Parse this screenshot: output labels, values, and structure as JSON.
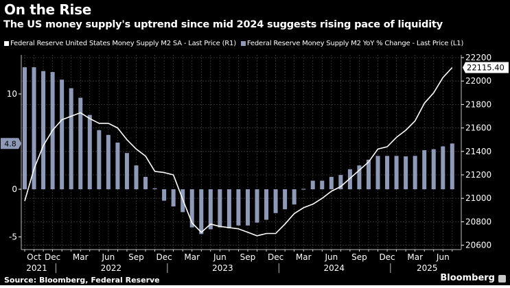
{
  "header": {
    "title": "On the Rise",
    "subtitle": "The US money supply's uptrend since mid 2024 suggests rising pace of liquidity"
  },
  "footer": {
    "source": "Source: Bloomberg, Federal Reserve",
    "brand": "Bloomberg"
  },
  "colors": {
    "background": "#000000",
    "line": "#ffffff",
    "bar": "#8e9ab8",
    "grid": "#3a3a3a",
    "text": "#ffffff"
  },
  "chart_data": {
    "type": "bar+line",
    "title": "On the Rise",
    "subtitle": "The US money supply's uptrend since mid 2024 suggests rising pace of liquidity",
    "legend_position": "top-left",
    "grid": true,
    "months": [
      "Sep 2021",
      "Oct 2021",
      "Nov 2021",
      "Dec 2021",
      "Jan 2022",
      "Feb 2022",
      "Mar 2022",
      "Apr 2022",
      "May 2022",
      "Jun 2022",
      "Jul 2022",
      "Aug 2022",
      "Sep 2022",
      "Oct 2022",
      "Nov 2022",
      "Dec 2022",
      "Jan 2023",
      "Feb 2023",
      "Mar 2023",
      "Apr 2023",
      "May 2023",
      "Jun 2023",
      "Jul 2023",
      "Aug 2023",
      "Sep 2023",
      "Oct 2023",
      "Nov 2023",
      "Dec 2023",
      "Jan 2024",
      "Feb 2024",
      "Mar 2024",
      "Apr 2024",
      "May 2024",
      "Jun 2024",
      "Jul 2024",
      "Aug 2024",
      "Sep 2024",
      "Oct 2024",
      "Nov 2024",
      "Dec 2024",
      "Jan 2025",
      "Feb 2025",
      "Mar 2025",
      "Apr 2025",
      "May 2025",
      "Jun 2025",
      "Jul 2025"
    ],
    "series": [
      {
        "name": "Federal Reserve United States Money Supply M2 SA - Last Price (R1)",
        "kind": "line",
        "axis": "right",
        "color": "#ffffff",
        "values": [
          20977,
          21250,
          21450,
          21580,
          21670,
          21700,
          21730,
          21680,
          21640,
          21640,
          21600,
          21500,
          21420,
          21360,
          21230,
          21220,
          21200,
          20990,
          20790,
          20710,
          20780,
          20760,
          20750,
          20740,
          20710,
          20680,
          20700,
          20700,
          20780,
          20870,
          20920,
          20950,
          21000,
          21060,
          21100,
          21170,
          21240,
          21310,
          21420,
          21440,
          21520,
          21580,
          21660,
          21810,
          21900,
          22030,
          22115.4
        ],
        "last_label": "22115.40"
      },
      {
        "name": "Federal Reserve Money Supply M2 YoY % Change - Last Price (L1)",
        "kind": "bar",
        "axis": "left",
        "color": "#8e9ab8",
        "values": [
          12.8,
          12.8,
          12.4,
          12.3,
          11.5,
          10.6,
          9.6,
          7.8,
          6.2,
          5.7,
          4.9,
          3.8,
          2.5,
          1.3,
          0.1,
          -1.2,
          -1.8,
          -2.4,
          -4.0,
          -4.7,
          -4.2,
          -4.0,
          -4.1,
          -3.8,
          -3.8,
          -3.5,
          -3.2,
          -2.5,
          -2.1,
          -1.6,
          0.05,
          0.9,
          0.9,
          1.3,
          1.5,
          2.1,
          2.5,
          3.1,
          3.5,
          3.5,
          3.5,
          3.45,
          3.5,
          4.1,
          4.2,
          4.5,
          4.8
        ],
        "last_label": "4.8"
      }
    ],
    "left_axis": {
      "ylim": [
        -6.4,
        13.2
      ],
      "ticks": [
        10,
        0,
        -5
      ],
      "tick_labels": [
        "10",
        "0",
        "-5"
      ]
    },
    "right_axis": {
      "ylim": [
        20540,
        22230
      ],
      "ticks": [
        22200,
        22000,
        21800,
        21600,
        21400,
        21200,
        21000,
        20800,
        20600
      ],
      "tick_labels": [
        "22200",
        "22000",
        "21800",
        "21600",
        "21400",
        "21200",
        "21000",
        "20800",
        "20600"
      ]
    },
    "x_axis": {
      "month_labels": [
        {
          "month": "Oct 2021",
          "label": "Oct"
        },
        {
          "month": "Dec 2021",
          "label": "Dec"
        },
        {
          "month": "Mar 2022",
          "label": "Mar"
        },
        {
          "month": "Jun 2022",
          "label": "Jun"
        },
        {
          "month": "Sep 2022",
          "label": "Sep"
        },
        {
          "month": "Dec 2022",
          "label": "Dec"
        },
        {
          "month": "Mar 2023",
          "label": "Mar"
        },
        {
          "month": "Jun 2023",
          "label": "Jun"
        },
        {
          "month": "Sep 2023",
          "label": "Sep"
        },
        {
          "month": "Dec 2023",
          "label": "Dec"
        },
        {
          "month": "Mar 2024",
          "label": "Mar"
        },
        {
          "month": "Jun 2024",
          "label": "Jun"
        },
        {
          "month": "Sep 2024",
          "label": "Sep"
        },
        {
          "month": "Dec 2024",
          "label": "Dec"
        },
        {
          "month": "Mar 2025",
          "label": "Mar"
        },
        {
          "month": "Jun 2025",
          "label": "Jun"
        }
      ],
      "year_labels": [
        {
          "month": "Oct 2021",
          "label": "2021"
        },
        {
          "month": "Jun 2022",
          "label": "2022"
        },
        {
          "month": "Jun 2023",
          "label": "2023"
        },
        {
          "month": "Jun 2024",
          "label": "2024"
        },
        {
          "month": "Apr 2025",
          "label": "2025"
        }
      ],
      "year_separators": [
        "Dec 2021",
        "Dec 2022",
        "Dec 2023",
        "Dec 2024"
      ]
    }
  }
}
